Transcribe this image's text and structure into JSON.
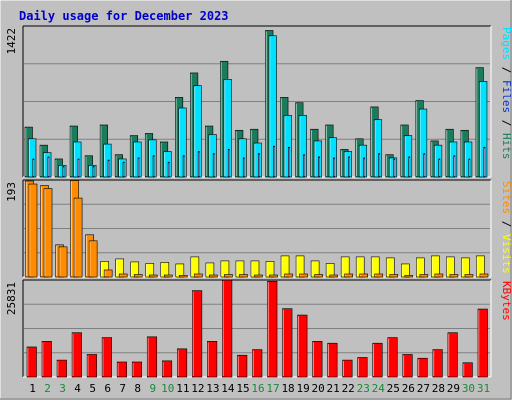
{
  "title": "Daily usage for December 2023",
  "colors": {
    "background": "#c0c0c0",
    "frame_dark": "#7f7f7f",
    "title_text": "#0000cc",
    "hits_dark": "#1b7b5d",
    "files_cyan": "#00e0ff",
    "pages_blue": "#0033cc",
    "visits_yellow": "#ffff00",
    "sites_orange": "#ff8c00",
    "kbytes_red": "#ff0000",
    "weekday_label": "#000000",
    "weekend_label": "#1a8a3a"
  },
  "chart_data": [
    {
      "type": "bar",
      "name": "hits-files-pages",
      "ymax_label": "1422",
      "ylim": [
        0,
        1422
      ],
      "right_label": {
        "parts": [
          "Pages",
          " / ",
          "Files",
          " / ",
          "Hits"
        ]
      },
      "categories": [
        "1",
        "2",
        "3",
        "4",
        "5",
        "6",
        "7",
        "8",
        "9",
        "10",
        "11",
        "12",
        "13",
        "14",
        "15",
        "16",
        "17",
        "18",
        "19",
        "20",
        "21",
        "22",
        "23",
        "24",
        "25",
        "26",
        "27",
        "28",
        "29",
        "30",
        "31"
      ],
      "series": [
        {
          "name": "Hits",
          "values": [
            470,
            300,
            170,
            480,
            200,
            490,
            210,
            390,
            410,
            330,
            750,
            980,
            480,
            1090,
            440,
            450,
            1380,
            750,
            700,
            450,
            490,
            260,
            360,
            660,
            210,
            490,
            720,
            340,
            450,
            440,
            1030
          ]
        },
        {
          "name": "Files",
          "values": [
            360,
            230,
            110,
            330,
            110,
            310,
            170,
            330,
            350,
            240,
            650,
            860,
            400,
            920,
            360,
            320,
            1330,
            580,
            580,
            340,
            370,
            240,
            300,
            540,
            180,
            390,
            640,
            300,
            330,
            330,
            900
          ]
        },
        {
          "name": "Pages",
          "values": [
            170,
            190,
            100,
            170,
            100,
            160,
            140,
            180,
            200,
            140,
            200,
            240,
            220,
            260,
            180,
            220,
            290,
            280,
            210,
            190,
            180,
            190,
            180,
            220,
            170,
            190,
            220,
            170,
            200,
            170,
            280
          ]
        }
      ]
    },
    {
      "type": "bar",
      "name": "visits-sites",
      "ymax_label": "193",
      "ylim": [
        0,
        193
      ],
      "right_label": {
        "parts": [
          "Sites",
          " / ",
          "Visits"
        ]
      },
      "categories": [
        "1",
        "2",
        "3",
        "4",
        "5",
        "6",
        "7",
        "8",
        "9",
        "10",
        "11",
        "12",
        "13",
        "14",
        "15",
        "16",
        "17",
        "18",
        "19",
        "20",
        "21",
        "22",
        "23",
        "24",
        "25",
        "26",
        "27",
        "28",
        "29",
        "30",
        "31"
      ],
      "series": [
        {
          "name": "Visits",
          "values": [
            191,
            182,
            64,
            192,
            84,
            31,
            36,
            30,
            27,
            29,
            26,
            40,
            28,
            32,
            32,
            32,
            31,
            42,
            42,
            32,
            27,
            40,
            40,
            40,
            38,
            26,
            38,
            42,
            40,
            38,
            42
          ]
        },
        {
          "name": "Sites",
          "values": [
            185,
            176,
            60,
            157,
            72,
            14,
            6,
            5,
            4,
            4,
            3,
            6,
            4,
            5,
            5,
            4,
            4,
            6,
            6,
            5,
            4,
            6,
            6,
            6,
            5,
            3,
            5,
            6,
            5,
            5,
            6
          ]
        }
      ]
    },
    {
      "type": "bar",
      "name": "kbytes",
      "ymax_label": "25831",
      "ylim": [
        0,
        25831
      ],
      "right_label": {
        "parts": [
          "KBytes"
        ]
      },
      "categories": [
        "1",
        "2",
        "3",
        "4",
        "5",
        "6",
        "7",
        "8",
        "9",
        "10",
        "11",
        "12",
        "13",
        "14",
        "15",
        "16",
        "17",
        "18",
        "19",
        "20",
        "21",
        "22",
        "23",
        "24",
        "25",
        "26",
        "27",
        "28",
        "29",
        "30",
        "31"
      ],
      "series": [
        {
          "name": "KBytes",
          "values": [
            8000,
            9500,
            4500,
            11800,
            6000,
            10500,
            4000,
            4000,
            10700,
            4300,
            7500,
            23000,
            9500,
            25800,
            5800,
            7300,
            25500,
            18200,
            16500,
            9500,
            9000,
            4500,
            5200,
            9000,
            10500,
            6000,
            5000,
            7300,
            11800,
            3800,
            18100
          ]
        }
      ]
    }
  ]
}
